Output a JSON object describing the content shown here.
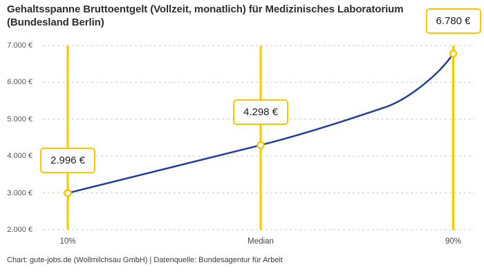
{
  "chart_data": {
    "type": "line",
    "title": "Gehaltsspanne Bruttoentgelt (Vollzeit, monatlich) für Medizinisches Laboratorium (Bundesland Berlin)",
    "categories": [
      "10%",
      "Median",
      "90%"
    ],
    "values": [
      2996,
      4298,
      6780
    ],
    "value_labels": [
      "2.996 €",
      "4.298 €",
      "6.780 €"
    ],
    "ylim": [
      2000,
      7000
    ],
    "ytick_values": [
      7000,
      6000,
      5000,
      4000,
      3000,
      2000
    ],
    "ytick_labels": [
      "7.000 €",
      "6.000 €",
      "5.000 €",
      "4.000 €",
      "3.000 €",
      "2.000 €"
    ],
    "xlabel": "",
    "ylabel": "",
    "grid": "horizontal-dashed",
    "legend": "none",
    "curve": "smooth"
  },
  "footer": "Chart: gute-jobs.de (Wollmilchsau GmbH) | Datenquelle: Bundesagentur für Arbeit",
  "colors": {
    "accent_yellow": "#FDC500",
    "line_blue": "#1F3C9E",
    "grid_gray": "#C9C9C9",
    "title_text": "#2E2E2E",
    "axis_text": "#55565A",
    "label_text": "#1D1D1B"
  }
}
